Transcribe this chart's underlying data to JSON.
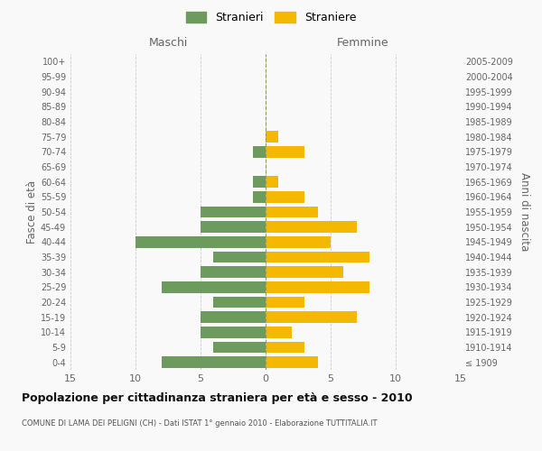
{
  "age_groups": [
    "100+",
    "95-99",
    "90-94",
    "85-89",
    "80-84",
    "75-79",
    "70-74",
    "65-69",
    "60-64",
    "55-59",
    "50-54",
    "45-49",
    "40-44",
    "35-39",
    "30-34",
    "25-29",
    "20-24",
    "15-19",
    "10-14",
    "5-9",
    "0-4"
  ],
  "birth_years": [
    "≤ 1909",
    "1910-1914",
    "1915-1919",
    "1920-1924",
    "1925-1929",
    "1930-1934",
    "1935-1939",
    "1940-1944",
    "1945-1949",
    "1950-1954",
    "1955-1959",
    "1960-1964",
    "1965-1969",
    "1970-1974",
    "1975-1979",
    "1980-1984",
    "1985-1989",
    "1990-1994",
    "1995-1999",
    "2000-2004",
    "2005-2009"
  ],
  "maschi": [
    0,
    0,
    0,
    0,
    0,
    0,
    1,
    0,
    1,
    1,
    5,
    5,
    10,
    4,
    5,
    8,
    4,
    5,
    5,
    4,
    8
  ],
  "femmine": [
    0,
    0,
    0,
    0,
    0,
    1,
    3,
    0,
    1,
    3,
    4,
    7,
    5,
    8,
    6,
    8,
    3,
    7,
    2,
    3,
    4
  ],
  "color_maschi": "#6d9b5e",
  "color_femmine": "#f5b800",
  "title": "Popolazione per cittadinanza straniera per età e sesso - 2010",
  "subtitle": "COMUNE DI LAMA DEI PELIGNI (CH) - Dati ISTAT 1° gennaio 2010 - Elaborazione TUTTITALIA.IT",
  "xlabel_left": "Maschi",
  "xlabel_right": "Femmine",
  "ylabel_left": "Fasce di età",
  "ylabel_right": "Anni di nascita",
  "legend_stranieri": "Stranieri",
  "legend_straniere": "Straniere",
  "xlim": 15,
  "bg_color": "#f9f9f9",
  "grid_color": "#cccccc",
  "bar_height": 0.75
}
